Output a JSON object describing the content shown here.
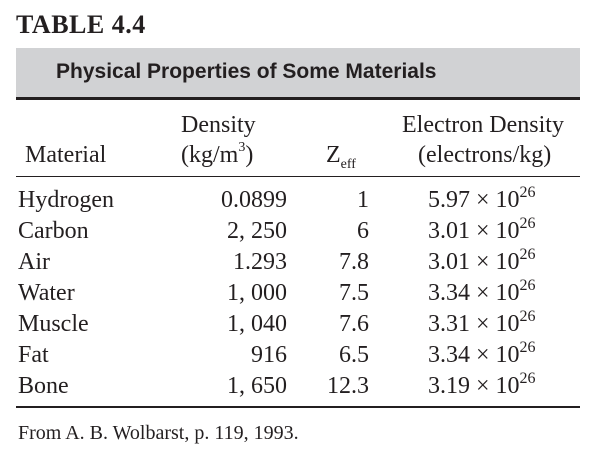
{
  "table_number": "TABLE 4.4",
  "title": "Physical Properties of Some Materials",
  "headers": {
    "material": "Material",
    "density_line1": "Density",
    "density_unit_pre": "(kg/m",
    "density_unit_exp": "3",
    "density_unit_post": ")",
    "z_base": "Z",
    "z_sub": "eff",
    "electron_density_line1": "Electron Density",
    "electron_density_unit": "(electrons/kg)"
  },
  "rows": [
    {
      "material": "Hydrogen",
      "density": "0.0899",
      "z_eff": "1",
      "ed_mantissa": "5.97 × 10",
      "ed_exp": "26"
    },
    {
      "material": "Carbon",
      "density": "2, 250",
      "z_eff": "6",
      "ed_mantissa": "3.01 × 10",
      "ed_exp": "26"
    },
    {
      "material": "Air",
      "density": "1.293",
      "z_eff": "7.8",
      "ed_mantissa": "3.01 × 10",
      "ed_exp": "26"
    },
    {
      "material": "Water",
      "density": "1, 000",
      "z_eff": "7.5",
      "ed_mantissa": "3.34 × 10",
      "ed_exp": "26"
    },
    {
      "material": "Muscle",
      "density": "1, 040",
      "z_eff": "7.6",
      "ed_mantissa": "3.31 × 10",
      "ed_exp": "26"
    },
    {
      "material": "Fat",
      "density": "916",
      "z_eff": "6.5",
      "ed_mantissa": "3.34 × 10",
      "ed_exp": "26"
    },
    {
      "material": "Bone",
      "density": "1, 650",
      "z_eff": "12.3",
      "ed_mantissa": "3.19 × 10",
      "ed_exp": "26"
    }
  ],
  "source": "From A. B. Wolbarst, p. 119, 1993.",
  "colors": {
    "title_bar": "#d1d2d4",
    "text": "#231f20"
  }
}
